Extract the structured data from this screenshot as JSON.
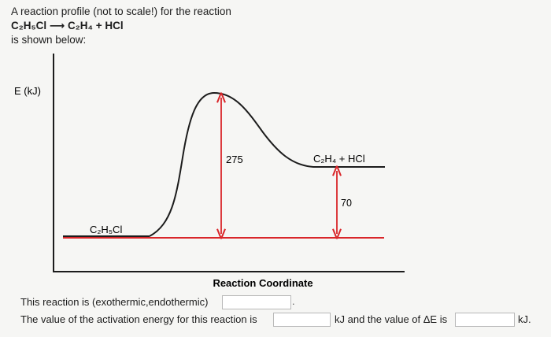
{
  "header": {
    "intro": "A reaction profile (not to scale!) for the reaction",
    "reaction": "C₂H₅Cl ⟶ C₂H₄ + HCl",
    "shown": "is shown below:"
  },
  "diagram": {
    "y_axis_label": "E (kJ)",
    "x_axis_label": "Reaction Coordinate",
    "reactant_label": "C₂H₅Cl",
    "product_label": "C₂H₄ + HCl",
    "activation_energy_label": "275",
    "product_gap_label": "70",
    "curve_color": "#1c1c1c",
    "reference_line_color": "#d9262a",
    "arrow_color": "#d9262a"
  },
  "questions": {
    "q1_text": "This reaction is (exothermic,endothermic)",
    "q1_value": "",
    "q1_suffix": ".",
    "q2_text": "The value of the activation energy for this reaction is",
    "q2_value": "",
    "q2_mid": "kJ and the value of ΔE is",
    "q3_value": "",
    "q2_suffix": "kJ."
  }
}
